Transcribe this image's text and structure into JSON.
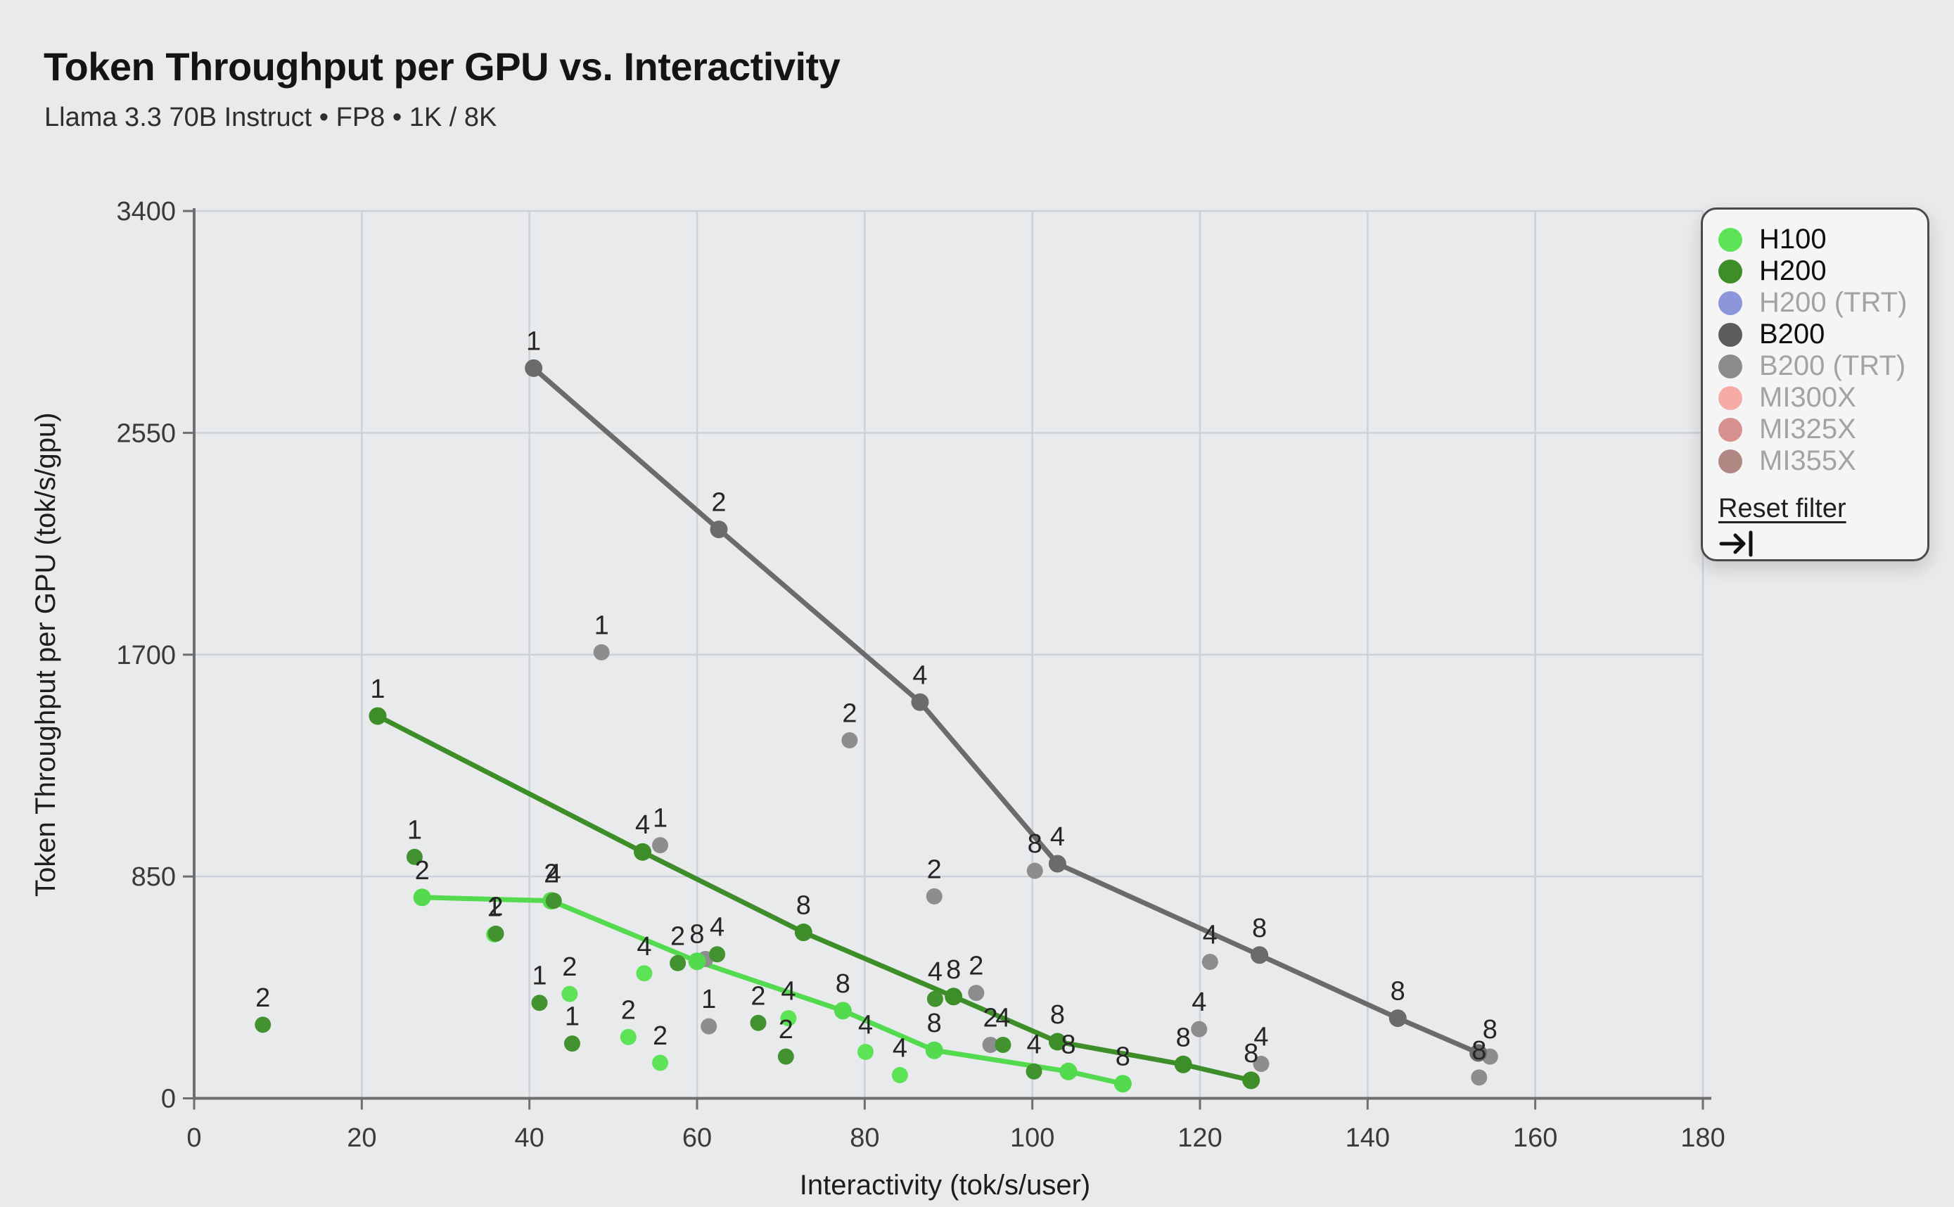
{
  "header": {
    "title": "Token Throughput per GPU vs. Interactivity",
    "subtitle": "Llama 3.3 70B Instruct • FP8 • 1K / 8K"
  },
  "legend": {
    "items": [
      {
        "label": "H100",
        "color": "#5CE456",
        "active": true
      },
      {
        "label": "H200",
        "color": "#3D8D29",
        "active": true
      },
      {
        "label": "H200 (TRT)",
        "color": "#8B97DA",
        "active": false
      },
      {
        "label": "B200",
        "color": "#5C5C5C",
        "active": true
      },
      {
        "label": "B200 (TRT)",
        "color": "#8C8C8C",
        "active": false
      },
      {
        "label": "MI300X",
        "color": "#F6ACA6",
        "active": false
      },
      {
        "label": "MI325X",
        "color": "#D69290",
        "active": false
      },
      {
        "label": "MI355X",
        "color": "#B18884",
        "active": false
      }
    ],
    "reset_label": "Reset filter",
    "collapse_icon": "arrow-to-bar-icon"
  },
  "chart_data": {
    "type": "scatter",
    "title": "Token Throughput per GPU vs. Interactivity",
    "subtitle": "Llama 3.3 70B Instruct • FP8 • 1K / 8K",
    "xlabel": "Interactivity (tok/s/user)",
    "ylabel": "Token Throughput per GPU (tok/s/gpu)",
    "xlim": [
      0,
      180
    ],
    "ylim": [
      0,
      3400
    ],
    "x_ticks": [
      0,
      20,
      40,
      60,
      80,
      100,
      120,
      140,
      160,
      180
    ],
    "y_ticks": [
      0,
      850,
      1700,
      2550,
      3400
    ],
    "grid": true,
    "legend_position": "top-right",
    "point_label_meaning": "GPUs per replica",
    "series": [
      {
        "name": "H100",
        "line_color": "#53DA4E",
        "marker_color": "#5CE456",
        "pareto_line": [
          [
            27.2,
            770,
            "2"
          ],
          [
            42.6,
            757,
            "2"
          ],
          [
            60.0,
            525,
            "8"
          ],
          [
            77.4,
            336,
            "8"
          ],
          [
            88.3,
            184,
            "8"
          ],
          [
            104.3,
            103,
            "8"
          ],
          [
            110.8,
            56,
            "8"
          ]
        ],
        "scatter": [
          [
            35.8,
            628,
            "1"
          ],
          [
            44.8,
            400,
            "2"
          ],
          [
            51.8,
            235,
            "2"
          ],
          [
            53.7,
            479,
            "4"
          ],
          [
            55.6,
            136,
            "2"
          ],
          [
            70.9,
            307,
            "4"
          ],
          [
            80.1,
            178,
            "4"
          ],
          [
            84.2,
            89,
            "4"
          ]
        ]
      },
      {
        "name": "H200",
        "line_color": "#3D8D29",
        "marker_color": "#42922F",
        "pareto_line": [
          [
            21.9,
            1465,
            "1"
          ],
          [
            53.5,
            944,
            "4"
          ],
          [
            72.7,
            636,
            "8"
          ],
          [
            90.6,
            390,
            "8"
          ],
          [
            103.0,
            217,
            "8"
          ],
          [
            118.0,
            130,
            "8"
          ],
          [
            126.1,
            69,
            "8"
          ]
        ],
        "scatter": [
          [
            8.2,
            282,
            "2"
          ],
          [
            26.3,
            925,
            "1"
          ],
          [
            36.0,
            631,
            "2"
          ],
          [
            41.2,
            366,
            "1"
          ],
          [
            42.9,
            757,
            "4"
          ],
          [
            45.1,
            210,
            "1"
          ],
          [
            57.7,
            518,
            "2"
          ],
          [
            62.4,
            552,
            "4"
          ],
          [
            67.3,
            289,
            "2"
          ],
          [
            70.6,
            160,
            "2"
          ],
          [
            88.4,
            381,
            "4"
          ],
          [
            96.5,
            205,
            "4"
          ],
          [
            100.2,
            103,
            "4"
          ]
        ]
      },
      {
        "name": "B200",
        "line_color": "#6B6B6B",
        "marker_color": "#8D8D8D",
        "pareto_line": [
          [
            40.5,
            2798,
            "1"
          ],
          [
            62.6,
            2180,
            "2"
          ],
          [
            86.6,
            1518,
            "4"
          ],
          [
            103.0,
            899,
            "4"
          ],
          [
            127.1,
            549,
            "8"
          ],
          [
            143.6,
            307,
            "8"
          ],
          [
            153.2,
            174,
            ""
          ]
        ],
        "scatter": [
          [
            48.6,
            1709,
            "1"
          ],
          [
            55.6,
            970,
            "1"
          ],
          [
            61.0,
            534,
            ""
          ],
          [
            61.4,
            276,
            "1"
          ],
          [
            78.2,
            1372,
            "2"
          ],
          [
            88.3,
            774,
            "2"
          ],
          [
            93.3,
            404,
            "2"
          ],
          [
            95.0,
            205,
            "2"
          ],
          [
            100.3,
            872,
            "8"
          ],
          [
            119.9,
            265,
            "4"
          ],
          [
            121.2,
            523,
            "4"
          ],
          [
            127.3,
            132,
            "4"
          ],
          [
            154.6,
            160,
            "8"
          ],
          [
            153.3,
            80,
            "8"
          ]
        ]
      }
    ]
  },
  "style": {
    "background": "#E9EAEC",
    "grid_color": "#CBD2DA",
    "axis_color": "#6F6F6F",
    "tick_label_color": "#3A3A3A",
    "axis_title_color": "#1D1D1D",
    "point_label_color": "#262626"
  }
}
